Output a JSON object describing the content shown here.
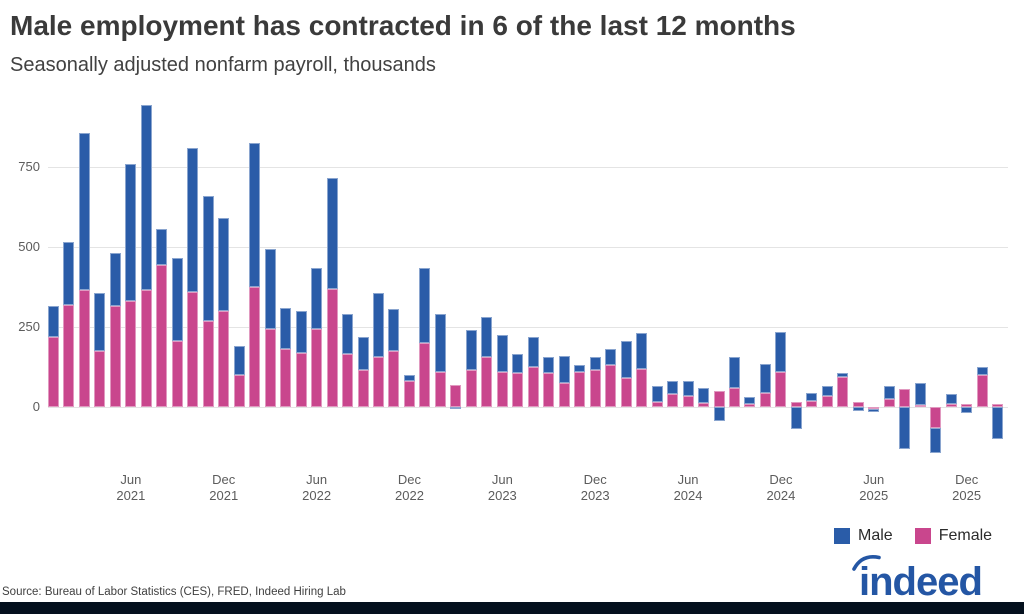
{
  "page": {
    "title": "Male employment has contracted in 6 of the last 12 months",
    "subtitle": "Seasonally adjusted nonfarm payroll, thousands",
    "source": "Source: Bureau of Labor Statistics (CES), FRED, Indeed Hiring Lab",
    "brand": "indeed"
  },
  "legend": {
    "male_label": "Male",
    "female_label": "Female"
  },
  "colors": {
    "male_blue": "#2a5ca8",
    "female_pink": "#c9468d",
    "logo_blue": "#2456a4",
    "footer_navy": "#04101e",
    "gridline_gray": "#e4e4e4",
    "axis_text_gray": "#5c5c5c",
    "title_gray": "#3a3a3a"
  },
  "chart_data": {
    "type": "bar",
    "stacked": true,
    "title": "Male employment has contracted in 6 of the last 12 months",
    "subtitle": "Seasonally adjusted nonfarm payroll, thousands",
    "unit": "thousands",
    "grid": "horizontal",
    "legend_position": "bottom-right",
    "ylim": [
      -200,
      1000
    ],
    "yticks": [
      0,
      250,
      500,
      750
    ],
    "categories": [
      "Jan 2021",
      "Feb 2021",
      "Mar 2021",
      "Apr 2021",
      "May 2021",
      "Jun 2021",
      "Jul 2021",
      "Aug 2021",
      "Sep 2021",
      "Oct 2021",
      "Nov 2021",
      "Dec 2021",
      "Jan 2022",
      "Feb 2022",
      "Mar 2022",
      "Apr 2022",
      "May 2022",
      "Jun 2022",
      "Jul 2022",
      "Aug 2022",
      "Sep 2022",
      "Oct 2022",
      "Nov 2022",
      "Dec 2022",
      "Jan 2023",
      "Feb 2023",
      "Mar 2023",
      "Apr 2023",
      "May 2023",
      "Jun 2023",
      "Jul 2023",
      "Aug 2023",
      "Sep 2023",
      "Oct 2023",
      "Nov 2023",
      "Dec 2023",
      "Jan 2024",
      "Feb 2024",
      "Mar 2024",
      "Apr 2024",
      "May 2024",
      "Jun 2024",
      "Jul 2024",
      "Aug 2024",
      "Sep 2024",
      "Oct 2024",
      "Nov 2024",
      "Dec 2024",
      "Jan 2025",
      "Feb 2025",
      "Mar 2025",
      "Apr 2025",
      "May 2025",
      "Jun 2025",
      "Jul 2025",
      "Aug 2025",
      "Sep 2025",
      "Oct 2025",
      "Nov 2025",
      "Dec 2025",
      "Jan 2026",
      "Feb 2026"
    ],
    "series": [
      {
        "name": "Female",
        "color": "#c9468d",
        "values": [
          220,
          320,
          365,
          175,
          315,
          330,
          365,
          445,
          205,
          360,
          270,
          300,
          100,
          375,
          245,
          180,
          170,
          245,
          370,
          165,
          115,
          155,
          175,
          80,
          200,
          110,
          70,
          115,
          155,
          110,
          105,
          125,
          105,
          75,
          110,
          115,
          130,
          90,
          120,
          15,
          40,
          35,
          12,
          50,
          60,
          10,
          45,
          110,
          15,
          20,
          35,
          95,
          15,
          -5,
          25,
          55,
          5,
          -65,
          10,
          10,
          100,
          10
        ]
      },
      {
        "name": "Male",
        "color": "#2a5ca8",
        "values": [
          95,
          195,
          490,
          180,
          165,
          430,
          580,
          110,
          260,
          450,
          390,
          290,
          90,
          450,
          250,
          130,
          130,
          190,
          345,
          125,
          105,
          200,
          130,
          20,
          235,
          180,
          -5,
          125,
          125,
          115,
          60,
          95,
          50,
          85,
          20,
          40,
          50,
          115,
          110,
          50,
          40,
          45,
          46,
          -44,
          95,
          22,
          90,
          125,
          -70,
          25,
          30,
          10,
          -12,
          -12,
          40,
          -130,
          70,
          -80,
          30,
          -20,
          25,
          -100
        ]
      }
    ],
    "xticks": [
      {
        "index": 5,
        "line1": "Jun",
        "line2": "2021"
      },
      {
        "index": 11,
        "line1": "Dec",
        "line2": "2021"
      },
      {
        "index": 17,
        "line1": "Jun",
        "line2": "2022"
      },
      {
        "index": 23,
        "line1": "Dec",
        "line2": "2022"
      },
      {
        "index": 29,
        "line1": "Jun",
        "line2": "2023"
      },
      {
        "index": 35,
        "line1": "Dec",
        "line2": "2023"
      },
      {
        "index": 41,
        "line1": "Jun",
        "line2": "2024"
      },
      {
        "index": 47,
        "line1": "Dec",
        "line2": "2024"
      },
      {
        "index": 53,
        "line1": "Jun",
        "line2": "2025"
      },
      {
        "index": 59,
        "line1": "Dec",
        "line2": "2025"
      }
    ]
  }
}
